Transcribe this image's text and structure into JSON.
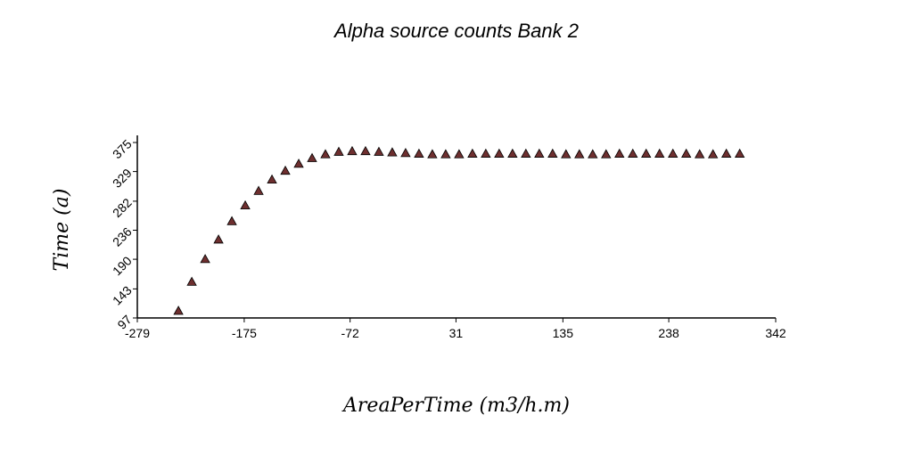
{
  "chart_data": {
    "type": "scatter",
    "title": "Alpha source counts Bank 2",
    "xlabel": "AreaPerTime (m3/h.m)",
    "ylabel": "Time (a)",
    "xlim": [
      -279,
      342
    ],
    "ylim": [
      97,
      375
    ],
    "x_ticks": [
      "-279",
      "-175",
      "-72",
      "31",
      "135",
      "238",
      "342"
    ],
    "y_ticks": [
      "97",
      "143",
      "190",
      "236",
      "282",
      "329",
      "375"
    ],
    "marker": "triangle",
    "marker_color": "#6e2f2f",
    "grid": false,
    "series": [
      {
        "x": [
          -239,
          -226,
          -213,
          -200,
          -187,
          -174,
          -161,
          -148,
          -135,
          -122,
          -109,
          -96,
          -83,
          -70,
          -57,
          -44,
          -31,
          -18,
          -5,
          8,
          21,
          34,
          47,
          60,
          73,
          86,
          99,
          112,
          125,
          138,
          151,
          164,
          177,
          190,
          203,
          216,
          229,
          242,
          255,
          268,
          281,
          294,
          307
        ],
        "y": [
          109,
          155,
          191,
          222,
          251,
          276,
          299,
          317,
          331,
          342,
          351,
          357,
          361,
          362,
          362,
          361,
          360,
          359,
          358,
          357,
          357,
          357,
          358,
          358,
          358,
          358,
          358,
          358,
          358,
          357,
          357,
          357,
          357,
          358,
          358,
          358,
          358,
          358,
          358,
          357,
          357,
          358,
          358
        ]
      }
    ]
  }
}
